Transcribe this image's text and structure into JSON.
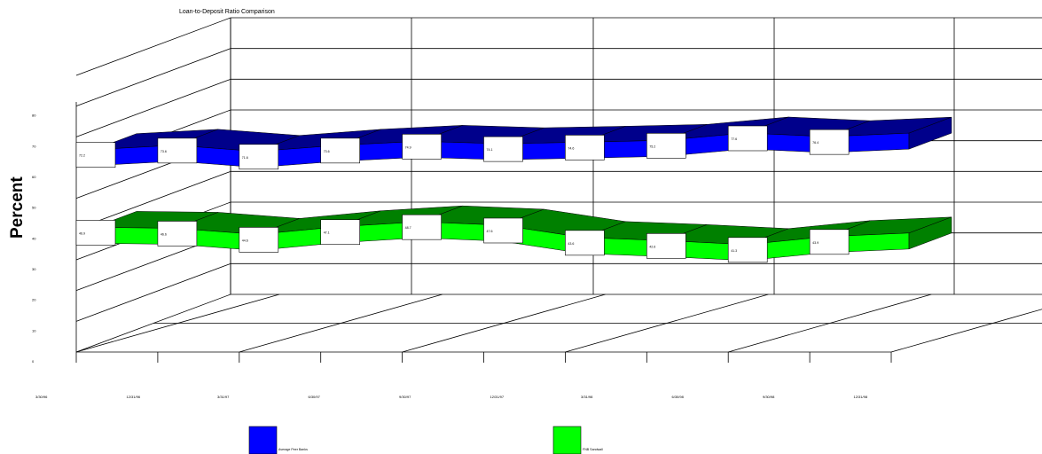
{
  "chart_data": {
    "type": "line",
    "title": "Loan-to-Deposit Ratio Comparison",
    "ylabel": "Percent",
    "ylim": [
      0,
      90
    ],
    "yticks": [
      0,
      10,
      20,
      30,
      40,
      50,
      60,
      70,
      80
    ],
    "categories": [
      "3/30/96",
      "12/31/96",
      "3/31/97",
      "6/30/97",
      "9/30/97",
      "12/31/97",
      "3/31/98",
      "6/30/98",
      "9/30/98",
      "12/31/98"
    ],
    "series": [
      {
        "name": "Average Peer Banks",
        "color_top": "#00008b",
        "color_front": "#0000ff",
        "values": [
          72.2,
          73.6,
          71.6,
          73.6,
          74.9,
          74.1,
          74.6,
          75.2,
          77.6,
          76.4
        ]
      },
      {
        "name": "FNB Sandwall",
        "color_top": "#008000",
        "color_front": "#00ff00",
        "values": [
          46.9,
          46.6,
          44.6,
          47.1,
          48.7,
          47.6,
          43.6,
          42.6,
          41.3,
          43.9
        ]
      }
    ],
    "grid": true,
    "legend_position": "bottom"
  }
}
